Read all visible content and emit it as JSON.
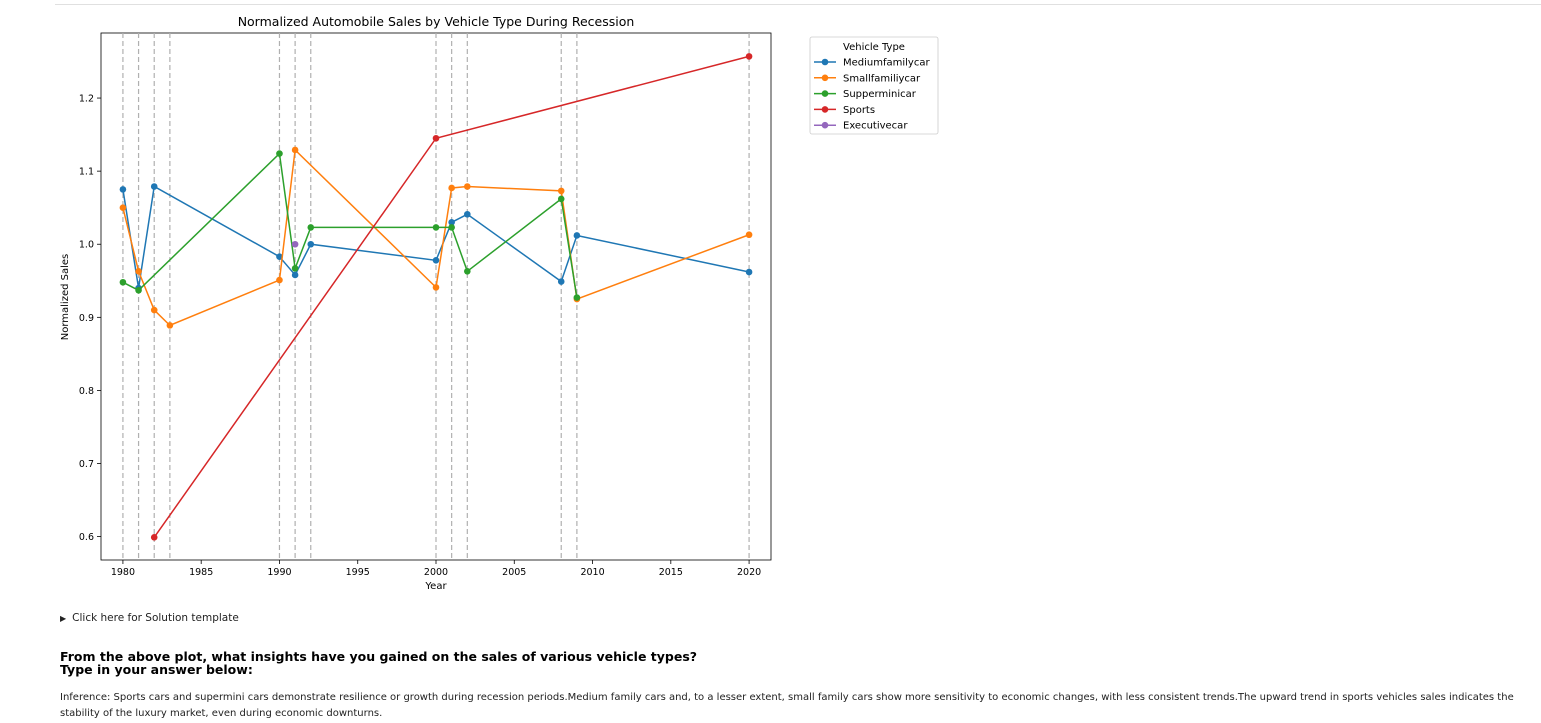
{
  "chart_data": {
    "type": "line",
    "title": "Normalized Automobile Sales by Vehicle Type During Recession",
    "xlabel": "Year",
    "ylabel": "Normalized Sales",
    "xlim": [
      1978.6,
      2021.4
    ],
    "ylim": [
      0.568,
      1.289
    ],
    "xticks": [
      1980,
      1985,
      1990,
      1995,
      2000,
      2005,
      2010,
      2015,
      2020
    ],
    "yticks": [
      0.6,
      0.7,
      0.8,
      0.9,
      1.0,
      1.1,
      1.2
    ],
    "recession_years": [
      1980,
      1981,
      1982,
      1983,
      1990,
      1991,
      1992,
      2000,
      2001,
      2002,
      2008,
      2009,
      2020
    ],
    "legend_title": "Vehicle Type",
    "legend_position": "outside upper right",
    "series": [
      {
        "name": "Mediumfamilycar",
        "color": "#1f77b4",
        "x": [
          1980,
          1981,
          1982,
          1990,
          1991,
          1992,
          2000,
          2001,
          2002,
          2008,
          2009,
          2020
        ],
        "y": [
          1.075,
          0.94,
          1.079,
          0.983,
          0.958,
          1.0,
          0.978,
          1.03,
          1.041,
          0.949,
          1.012,
          0.962
        ]
      },
      {
        "name": "Smallfamiliycar",
        "color": "#ff7f0e",
        "x": [
          1980,
          1981,
          1982,
          1983,
          1990,
          1991,
          2000,
          2001,
          2002,
          2008,
          2009,
          2020
        ],
        "y": [
          1.05,
          0.963,
          0.91,
          0.889,
          0.951,
          1.129,
          0.941,
          1.077,
          1.079,
          1.073,
          0.925,
          1.013
        ]
      },
      {
        "name": "Supperminicar",
        "color": "#2ca02c",
        "x": [
          1980,
          1981,
          1990,
          1991,
          1992,
          2000,
          2001,
          2002,
          2008,
          2009
        ],
        "y": [
          0.948,
          0.937,
          1.124,
          0.967,
          1.023,
          1.023,
          1.023,
          0.963,
          1.062,
          0.927
        ]
      },
      {
        "name": "Sports",
        "color": "#d62728",
        "x": [
          1982,
          2000,
          2020
        ],
        "y": [
          0.599,
          1.145,
          1.257
        ]
      },
      {
        "name": "Executivecar",
        "color": "#9467bd",
        "x": [
          1991
        ],
        "y": [
          1.0
        ]
      }
    ]
  },
  "details_label": "Click here for Solution template",
  "question": {
    "line1": "From the above plot, what insights have you gained on the sales of various vehicle types?",
    "line2": "Type in your answer below:"
  },
  "answer_text": "Inference: Sports cars and supermini cars demonstrate resilience or growth during recession periods.Medium family cars and, to a lesser extent, small family cars show more sensitivity to economic changes, with less consistent trends.The upward trend in sports vehicles sales indicates the stability of the luxury market, even during economic downturns."
}
